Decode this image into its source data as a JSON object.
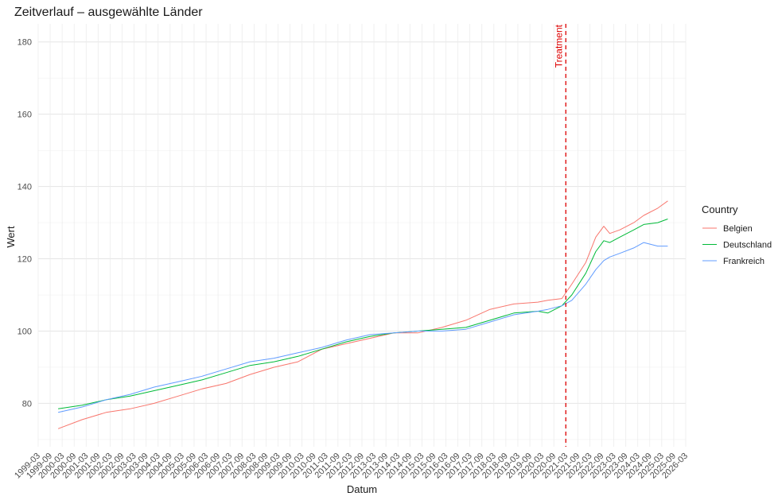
{
  "chart_data": {
    "type": "line",
    "title": "Zeitverlauf – ausgewählte Länder",
    "xlabel": "Datum",
    "ylabel": "Wert",
    "xlim": [
      "1999-03",
      "2026-03"
    ],
    "ylim": [
      68,
      185
    ],
    "y_ticks": [
      80,
      100,
      120,
      140,
      160,
      180
    ],
    "x_tick_labels": [
      "1999-03",
      "1999-09",
      "2000-03",
      "2000-09",
      "2001-03",
      "2001-09",
      "2002-03",
      "2002-09",
      "2003-03",
      "2003-09",
      "2004-03",
      "2004-09",
      "2005-03",
      "2005-09",
      "2006-03",
      "2006-09",
      "2007-03",
      "2007-09",
      "2008-03",
      "2008-09",
      "2009-03",
      "2009-09",
      "2010-03",
      "2010-09",
      "2011-03",
      "2011-09",
      "2012-03",
      "2012-09",
      "2013-03",
      "2013-09",
      "2014-03",
      "2014-09",
      "2015-03",
      "2015-09",
      "2016-03",
      "2016-09",
      "2017-03",
      "2017-09",
      "2018-03",
      "2018-09",
      "2019-03",
      "2019-09",
      "2020-03",
      "2020-09",
      "2021-03",
      "2021-09",
      "2022-03",
      "2022-09",
      "2023-03",
      "2023-09",
      "2024-03",
      "2024-09",
      "2025-03",
      "2025-09",
      "2026-03"
    ],
    "grid": true,
    "legend": {
      "title": "Country",
      "placement": "right"
    },
    "x": [
      "2000-01",
      "2001-01",
      "2002-01",
      "2003-01",
      "2004-01",
      "2005-01",
      "2006-01",
      "2007-01",
      "2008-01",
      "2009-01",
      "2010-01",
      "2011-01",
      "2012-01",
      "2013-01",
      "2014-01",
      "2015-01",
      "2016-01",
      "2017-01",
      "2018-01",
      "2019-01",
      "2020-01",
      "2020-06",
      "2021-01",
      "2021-06",
      "2022-01",
      "2022-06",
      "2022-10",
      "2023-01",
      "2023-06",
      "2024-01",
      "2024-06",
      "2025-01",
      "2025-06"
    ],
    "series": [
      {
        "name": "Belgien",
        "color": "#F8766D",
        "values": [
          73,
          75.5,
          77.5,
          78.5,
          80,
          82,
          84,
          85.5,
          88,
          90,
          91.5,
          95,
          96.5,
          98,
          99.5,
          99.5,
          101,
          103,
          106,
          107.5,
          108,
          108.5,
          109,
          113,
          119,
          126,
          129,
          127,
          128,
          130,
          132,
          134,
          136
        ]
      },
      {
        "name": "Deutschland",
        "color": "#00BA38",
        "values": [
          78.5,
          79.5,
          81,
          82,
          83.5,
          85,
          86.5,
          88.5,
          90.5,
          91.5,
          93,
          95,
          97,
          98.5,
          99.5,
          100,
          100.5,
          101,
          103,
          105,
          105.5,
          105,
          107,
          110,
          116,
          122,
          125,
          124.5,
          126,
          128,
          129.5,
          130,
          131
        ]
      },
      {
        "name": "Frankreich",
        "color": "#619CFF",
        "values": [
          77.5,
          79,
          81,
          82.5,
          84.5,
          86,
          87.5,
          89.5,
          91.5,
          92.5,
          94,
          95.5,
          97.5,
          99,
          99.5,
          100,
          100,
          100.5,
          102.5,
          104.5,
          105.5,
          106,
          107,
          108.5,
          113,
          117,
          119.5,
          120.5,
          121.5,
          123,
          124.5,
          123.5,
          123.5
        ]
      }
    ],
    "annotations": [
      {
        "type": "vline",
        "x": "2021-03",
        "label": "Treatment",
        "color": "#DD0000"
      }
    ]
  }
}
